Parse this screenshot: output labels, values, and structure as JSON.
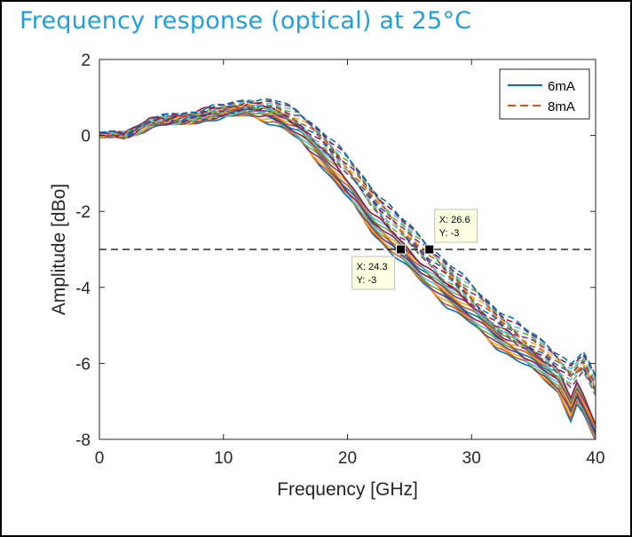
{
  "slide_title": "Frequency response (optical) at 25°C",
  "colors": {
    "title": "#1ea0e0",
    "palette": [
      "#0072BD",
      "#D95319",
      "#EDB120",
      "#7E2F8E",
      "#77AC30",
      "#4DBEEE",
      "#A2142F"
    ],
    "reference_line": "#000000",
    "datatip_fill": "#ffffe1"
  },
  "chart_data": {
    "type": "line",
    "xlabel": "Frequency [GHz]",
    "ylabel": "Amplitude [dBo]",
    "xlim": [
      0,
      40
    ],
    "ylim": [
      -8,
      2
    ],
    "x_ticks": [
      0,
      10,
      20,
      30,
      40
    ],
    "y_ticks": [
      2,
      0,
      -2,
      -4,
      -6,
      -8
    ],
    "grid": false,
    "legend_position": "top-right",
    "legend": [
      {
        "label": "6mA",
        "style": "solid",
        "color": "#0072BD"
      },
      {
        "label": "8mA",
        "style": "dashed",
        "color": "#D95319"
      }
    ],
    "series_groups": [
      {
        "name": "6mA",
        "style": "solid",
        "curve_count": 14,
        "representative": {
          "x": [
            0,
            2,
            4,
            6,
            8,
            10,
            12,
            14,
            16,
            18,
            20,
            22,
            24,
            26,
            28,
            30,
            32,
            34,
            36,
            37,
            38,
            38.5,
            39,
            40
          ],
          "y": [
            0,
            0,
            0.3,
            0.4,
            0.5,
            0.6,
            0.7,
            0.5,
            0.1,
            -0.6,
            -1.4,
            -2.3,
            -2.95,
            -3.6,
            -4.2,
            -4.7,
            -5.3,
            -5.7,
            -6.2,
            -6.5,
            -7.2,
            -6.8,
            -7.1,
            -7.8
          ]
        }
      },
      {
        "name": "8mA",
        "style": "dashed",
        "curve_count": 12,
        "representative": {
          "x": [
            0,
            2,
            4,
            6,
            8,
            10,
            12,
            14,
            16,
            18,
            20,
            22,
            24,
            26,
            28,
            30,
            32,
            34,
            36,
            38,
            39,
            40
          ],
          "y": [
            0,
            0,
            0.3,
            0.45,
            0.55,
            0.65,
            0.8,
            0.75,
            0.45,
            -0.1,
            -0.8,
            -1.6,
            -2.35,
            -2.95,
            -3.6,
            -4.2,
            -4.8,
            -5.3,
            -5.7,
            -6.3,
            -6.0,
            -6.6
          ]
        }
      }
    ],
    "reference_line": {
      "y": -3,
      "style": "dashed"
    },
    "datatips": [
      {
        "x": 24.3,
        "y": -3,
        "label_x": "X: 24.3",
        "label_y": "Y: -3"
      },
      {
        "x": 26.6,
        "y": -3,
        "label_x": "X: 26.6",
        "label_y": "Y: -3"
      }
    ]
  }
}
